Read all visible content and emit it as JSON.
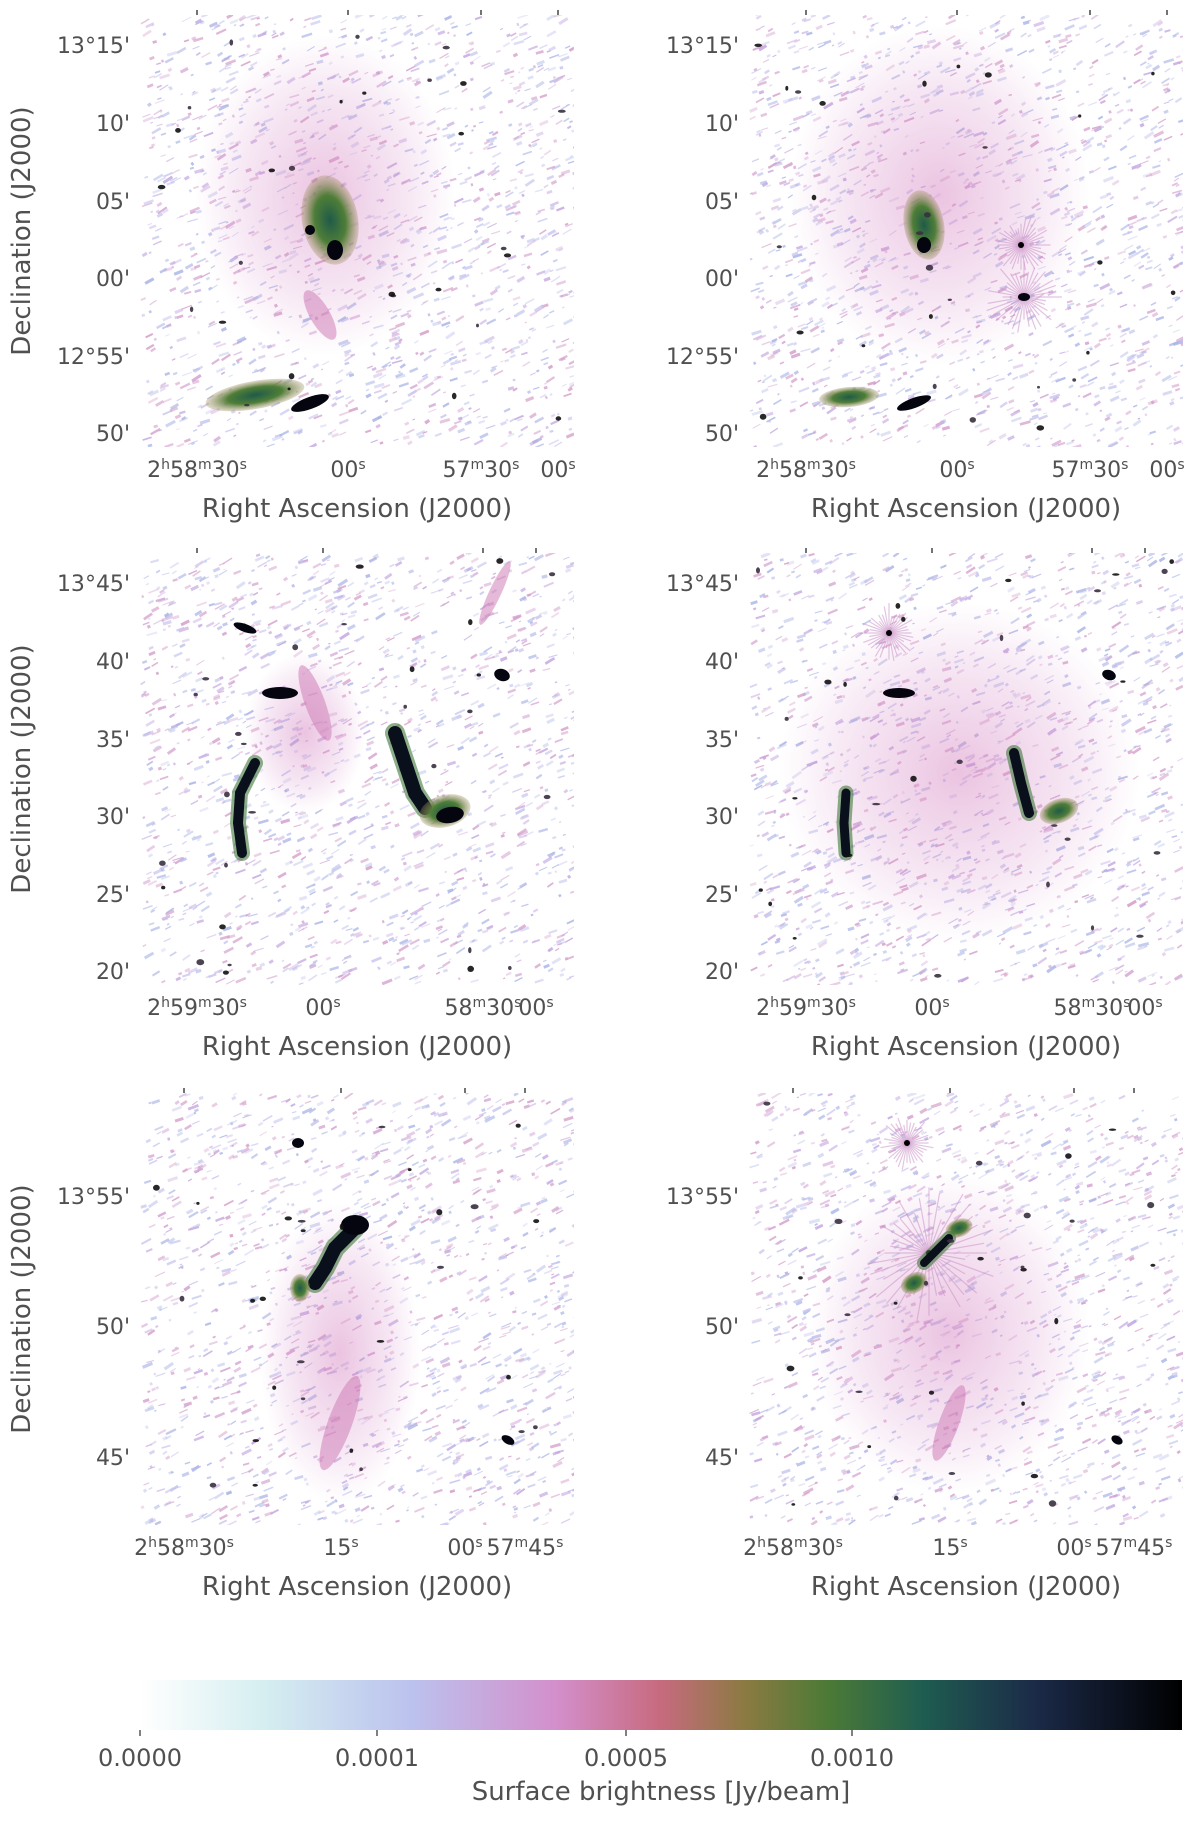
{
  "panels": [
    {
      "ylabel": "Declination (J2000)",
      "xlabel": "Right Ascension (J2000)",
      "yticks": [
        {
          "deg": "13",
          "min": "15"
        },
        {
          "min": "10"
        },
        {
          "min": "05"
        },
        {
          "min": "00"
        },
        {
          "deg": "12",
          "min": "55"
        },
        {
          "min": "50"
        }
      ],
      "xticks": [
        {
          "h": "2",
          "m": "58",
          "s": "30"
        },
        {
          "s": "00"
        },
        {
          "m": "57",
          "s": "30"
        },
        {
          "s": "00"
        }
      ]
    },
    {
      "ylabel": "",
      "xlabel": "Right Ascension (J2000)",
      "yticks": [
        {
          "deg": "13",
          "min": "15"
        },
        {
          "min": "10"
        },
        {
          "min": "05"
        },
        {
          "min": "00"
        },
        {
          "deg": "12",
          "min": "55"
        },
        {
          "min": "50"
        }
      ],
      "xticks": [
        {
          "h": "2",
          "m": "58",
          "s": "30"
        },
        {
          "s": "00"
        },
        {
          "m": "57",
          "s": "30"
        },
        {
          "s": "00"
        }
      ]
    },
    {
      "ylabel": "Declination (J2000)",
      "xlabel": "Right Ascension (J2000)",
      "yticks": [
        {
          "deg": "13",
          "min": "45"
        },
        {
          "min": "40"
        },
        {
          "min": "35"
        },
        {
          "min": "30"
        },
        {
          "min": "25"
        },
        {
          "min": "20"
        }
      ],
      "xticks": [
        {
          "h": "2",
          "m": "59",
          "s": "30"
        },
        {
          "s": "00"
        },
        {
          "m": "58",
          "s": "30"
        },
        {
          "s": "00"
        }
      ]
    },
    {
      "ylabel": "",
      "xlabel": "Right Ascension (J2000)",
      "yticks": [
        {
          "deg": "13",
          "min": "45"
        },
        {
          "min": "40"
        },
        {
          "min": "35"
        },
        {
          "min": "30"
        },
        {
          "min": "25"
        },
        {
          "min": "20"
        }
      ],
      "xticks": [
        {
          "h": "2",
          "m": "59",
          "s": "30"
        },
        {
          "s": "00"
        },
        {
          "m": "58",
          "s": "30"
        },
        {
          "s": "00"
        }
      ]
    },
    {
      "ylabel": "Declination (J2000)",
      "xlabel": "Right Ascension (J2000)",
      "yticks": [
        {
          "deg": "13",
          "min": "55"
        },
        {
          "min": "50"
        },
        {
          "min": "45"
        }
      ],
      "xticks": [
        {
          "h": "2",
          "m": "58",
          "s": "30"
        },
        {
          "s": "15"
        },
        {
          "s": "00"
        },
        {
          "m": "57",
          "s": "45"
        }
      ]
    },
    {
      "ylabel": "",
      "xlabel": "Right Ascension (J2000)",
      "yticks": [
        {
          "deg": "13",
          "min": "55"
        },
        {
          "min": "50"
        },
        {
          "min": "45"
        }
      ],
      "xticks": [
        {
          "h": "2",
          "m": "58",
          "s": "30"
        },
        {
          "s": "15"
        },
        {
          "s": "00"
        },
        {
          "m": "57",
          "s": "45"
        }
      ]
    }
  ],
  "colorbar": {
    "label": "Surface brightness [Jy/beam]",
    "ticks": [
      "0.0000",
      "0.0001",
      "0.0005",
      "0.0010"
    ],
    "colors": [
      "#ffffff",
      "#bcc2ee",
      "#d38fcb",
      "#c76a7e",
      "#6a7a30",
      "#1f5d50",
      "#1b2a48",
      "#000000"
    ]
  },
  "colors": {
    "noise": [
      "#b7bde9",
      "#c3a6e0",
      "#d3a0d0",
      "#d49cc7",
      "#c8c6ef",
      "#a9b4e6"
    ],
    "diffuse": "#d07fc0",
    "bright": "#3c6a3a",
    "core": "#000000"
  }
}
